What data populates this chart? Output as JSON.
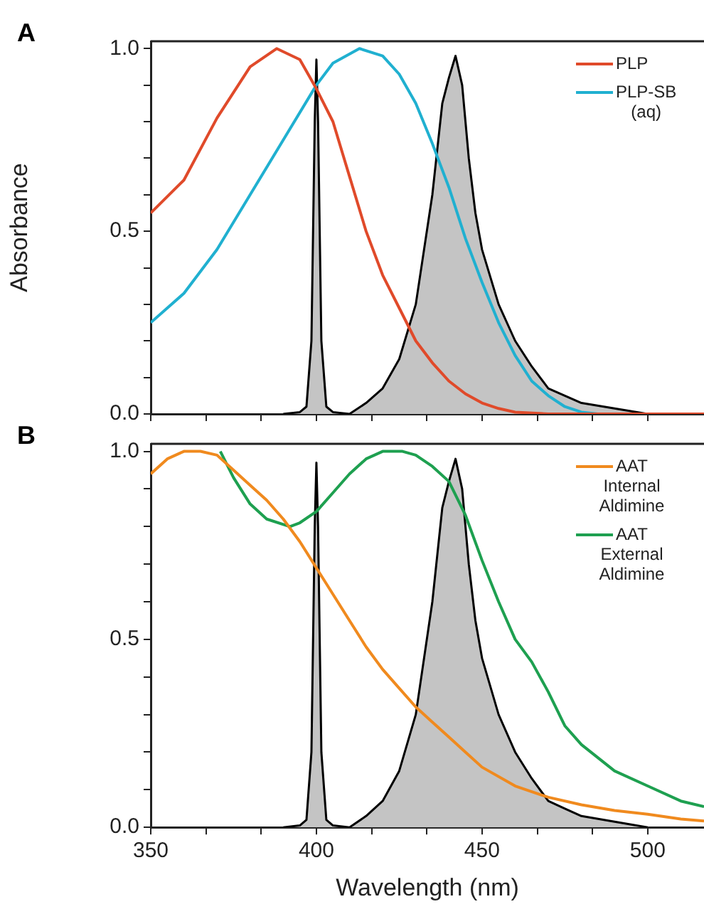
{
  "chart_data": [
    {
      "type": "line",
      "annotations": [
        "A"
      ],
      "ylabel": "Absorbance",
      "xlim": [
        350,
        517
      ],
      "ylim": [
        0,
        1.02
      ],
      "xticks": [
        350,
        {
          "value": 366.7,
          "label": null
        },
        {
          "value": 383.3,
          "label": null
        },
        400,
        {
          "value": 416.7,
          "label": null
        },
        {
          "value": 433.3,
          "label": null
        },
        450,
        {
          "value": 466.7,
          "label": null
        },
        {
          "value": 483.3,
          "label": null
        },
        500
      ],
      "yticks": [
        {
          "value": 0,
          "label": "0.0"
        },
        {
          "value": 0.1,
          "label": null
        },
        {
          "value": 0.2,
          "label": null
        },
        {
          "value": 0.3,
          "label": null
        },
        {
          "value": 0.4,
          "label": null
        },
        {
          "value": 0.5,
          "label": "0.5"
        },
        {
          "value": 0.6,
          "label": null
        },
        {
          "value": 0.7,
          "label": null
        },
        {
          "value": 0.8,
          "label": null
        },
        {
          "value": 0.9,
          "label": null
        },
        {
          "value": 1,
          "label": "1.0"
        }
      ],
      "tick_labels": "y",
      "grid": false,
      "legend": "top right",
      "marker": "none",
      "line_style": "solid",
      "series": [
        {
          "type": "area",
          "color": "#000000",
          "x": [
            390,
            395,
            397,
            398.5,
            399.5,
            400,
            400.5,
            401.5,
            403,
            405,
            410,
            415,
            420,
            425,
            430,
            435,
            438,
            440,
            442,
            444,
            446,
            448,
            450,
            455,
            460,
            465,
            470,
            475,
            480,
            490,
            500
          ],
          "values": [
            0,
            0.005,
            0.02,
            0.2,
            0.8,
            0.97,
            0.8,
            0.2,
            0.02,
            0.005,
            0,
            0.03,
            0.07,
            0.15,
            0.3,
            0.6,
            0.85,
            0.92,
            0.98,
            0.9,
            0.7,
            0.55,
            0.45,
            0.3,
            0.2,
            0.13,
            0.07,
            0.05,
            0.03,
            0.015,
            0
          ]
        },
        {
          "name": "PLP",
          "color": "#e04a2a",
          "x": [
            350,
            360,
            370,
            380,
            388,
            395,
            400,
            405,
            410,
            415,
            420,
            425,
            430,
            435,
            440,
            445,
            450,
            455,
            460,
            470,
            517
          ],
          "values": [
            0.55,
            0.64,
            0.81,
            0.95,
            1,
            0.97,
            0.89,
            0.8,
            0.65,
            0.5,
            0.38,
            0.29,
            0.2,
            0.14,
            0.09,
            0.055,
            0.03,
            0.015,
            0.005,
            0,
            0
          ]
        },
        {
          "name": "PLP-SB (aq)",
          "color": "#20b0d0",
          "x": [
            350,
            360,
            370,
            380,
            390,
            400,
            405,
            413,
            420,
            425,
            430,
            435,
            440,
            445,
            450,
            455,
            460,
            465,
            470,
            475,
            480,
            485,
            517
          ],
          "values": [
            0.25,
            0.33,
            0.45,
            0.6,
            0.75,
            0.9,
            0.96,
            1,
            0.98,
            0.93,
            0.85,
            0.74,
            0.62,
            0.48,
            0.36,
            0.25,
            0.16,
            0.09,
            0.05,
            0.02,
            0.005,
            0,
            0
          ]
        }
      ]
    },
    {
      "type": "line",
      "annotations": [
        "B"
      ],
      "xlabel": "Wavelength (nm)",
      "xlim": [
        350,
        517
      ],
      "ylim": [
        0,
        1.02
      ],
      "xticks": [
        350,
        {
          "value": 366.7,
          "label": null
        },
        {
          "value": 383.3,
          "label": null
        },
        400,
        {
          "value": 416.7,
          "label": null
        },
        {
          "value": 433.3,
          "label": null
        },
        450,
        {
          "value": 466.7,
          "label": null
        },
        {
          "value": 483.3,
          "label": null
        },
        500
      ],
      "yticks": [
        {
          "value": 0,
          "label": "0.0"
        },
        {
          "value": 0.1,
          "label": null
        },
        {
          "value": 0.2,
          "label": null
        },
        {
          "value": 0.3,
          "label": null
        },
        {
          "value": 0.4,
          "label": null
        },
        {
          "value": 0.5,
          "label": "0.5"
        },
        {
          "value": 0.6,
          "label": null
        },
        {
          "value": 0.7,
          "label": null
        },
        {
          "value": 0.8,
          "label": null
        },
        {
          "value": 0.9,
          "label": null
        },
        {
          "value": 1,
          "label": "1.0"
        }
      ],
      "grid": false,
      "legend": "top right",
      "marker": "none",
      "line_style": "solid",
      "series": [
        {
          "type": "area",
          "color": "#000000",
          "x": [
            390,
            395,
            397,
            398.5,
            399.5,
            400,
            400.5,
            401.5,
            403,
            405,
            410,
            415,
            420,
            425,
            430,
            435,
            438,
            440,
            442,
            444,
            446,
            448,
            450,
            455,
            460,
            465,
            470,
            475,
            480,
            490,
            500
          ],
          "values": [
            0,
            0.005,
            0.02,
            0.2,
            0.8,
            0.97,
            0.8,
            0.2,
            0.02,
            0.005,
            0,
            0.03,
            0.07,
            0.15,
            0.3,
            0.6,
            0.85,
            0.92,
            0.98,
            0.9,
            0.7,
            0.55,
            0.45,
            0.3,
            0.2,
            0.13,
            0.07,
            0.05,
            0.03,
            0.015,
            0
          ]
        },
        {
          "name": "AAT Internal Aldimine",
          "color": "#f08a1e",
          "x": [
            350,
            355,
            360,
            365,
            370,
            375,
            380,
            385,
            390,
            395,
            400,
            405,
            410,
            415,
            420,
            425,
            430,
            435,
            440,
            445,
            450,
            460,
            470,
            480,
            490,
            500,
            510,
            517
          ],
          "values": [
            0.94,
            0.98,
            1,
            1,
            0.99,
            0.95,
            0.91,
            0.87,
            0.82,
            0.76,
            0.69,
            0.62,
            0.55,
            0.48,
            0.42,
            0.37,
            0.32,
            0.28,
            0.24,
            0.2,
            0.16,
            0.11,
            0.08,
            0.06,
            0.045,
            0.035,
            0.022,
            0.017
          ]
        },
        {
          "name": "AAT External Aldimine",
          "color": "#1ea050",
          "x": [
            371,
            375,
            380,
            385,
            392,
            395,
            400,
            405,
            410,
            415,
            420,
            426,
            430,
            435,
            440,
            445,
            450,
            455,
            460,
            465,
            470,
            475,
            480,
            490,
            500,
            510,
            517
          ],
          "values": [
            1,
            0.93,
            0.86,
            0.82,
            0.8,
            0.81,
            0.84,
            0.89,
            0.94,
            0.98,
            1,
            1,
            0.99,
            0.96,
            0.92,
            0.83,
            0.71,
            0.6,
            0.5,
            0.44,
            0.36,
            0.27,
            0.22,
            0.15,
            0.11,
            0.07,
            0.055
          ]
        }
      ]
    }
  ]
}
